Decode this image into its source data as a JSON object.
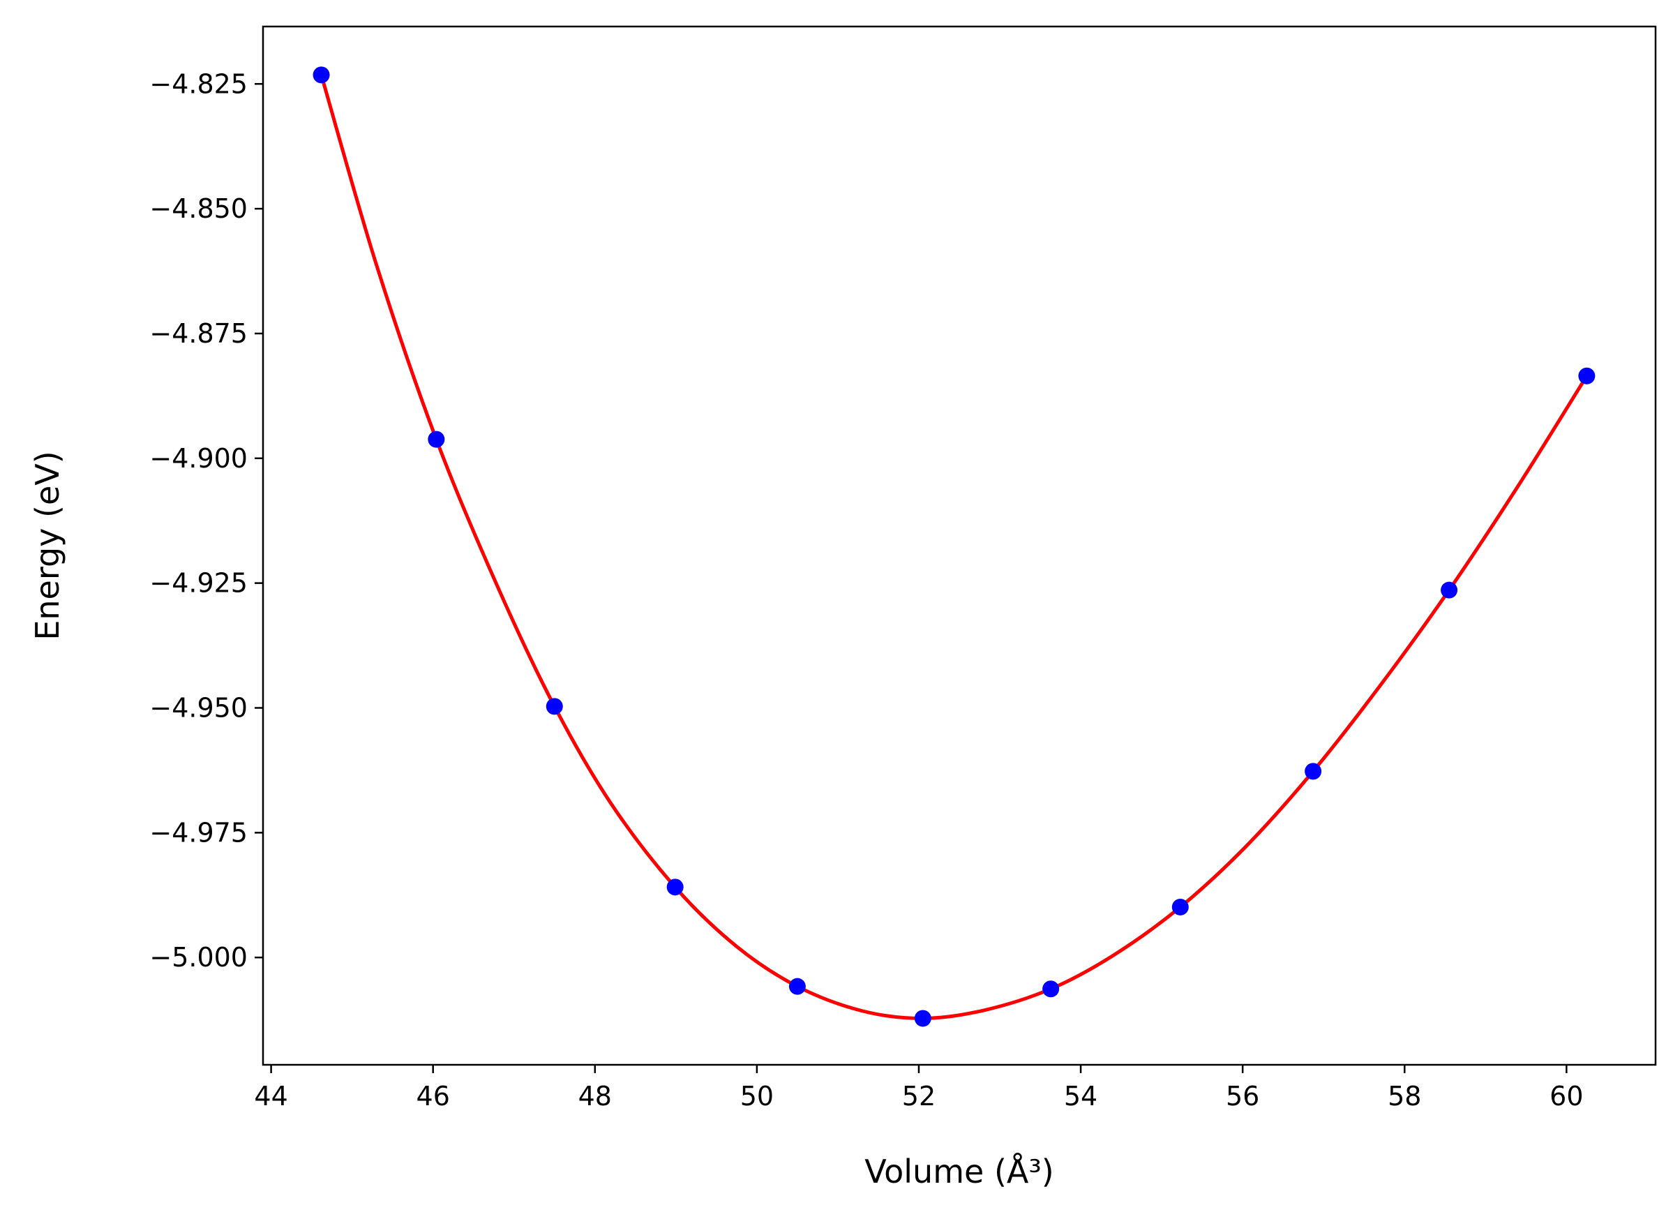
{
  "chart_data": {
    "type": "scatter",
    "xlabel": "Volume (Å³)",
    "ylabel": "Energy (eV)",
    "xlim": [
      43.9,
      61.1
    ],
    "ylim": [
      -5.0215,
      -4.8135
    ],
    "xticks": [
      44,
      46,
      48,
      50,
      52,
      54,
      56,
      58,
      60
    ],
    "xtick_labels": [
      "44",
      "46",
      "48",
      "50",
      "52",
      "54",
      "56",
      "58",
      "60"
    ],
    "yticks": [
      -4.825,
      -4.85,
      -4.875,
      -4.9,
      -4.925,
      -4.95,
      -4.975,
      -5.0
    ],
    "ytick_labels": [
      "−4.825",
      "−4.850",
      "−4.875",
      "−4.900",
      "−4.925",
      "−4.950",
      "−4.975",
      "−5.000"
    ],
    "grid": false,
    "series": [
      {
        "kind": "points",
        "color": "#0000ff",
        "x": [
          44.62,
          46.04,
          47.5,
          48.99,
          50.5,
          52.05,
          53.63,
          55.23,
          56.87,
          58.55,
          60.25
        ],
        "y": [
          -4.8232,
          -4.8962,
          -4.9497,
          -4.9859,
          -5.0058,
          -5.0122,
          -5.0063,
          -4.9899,
          -4.9627,
          -4.9264,
          -4.8835
        ]
      },
      {
        "kind": "fit-curve",
        "color": "#ff0000",
        "x": [
          44.62,
          45.3,
          46.04,
          46.8,
          47.5,
          48.2,
          48.99,
          49.75,
          50.5,
          51.3,
          52.05,
          52.8,
          53.63,
          54.4,
          55.23,
          56.05,
          56.87,
          57.7,
          58.55,
          59.4,
          60.25
        ],
        "y": [
          -4.8232,
          -4.8612,
          -4.8962,
          -4.9258,
          -4.9497,
          -4.9692,
          -4.9859,
          -4.9978,
          -5.0058,
          -5.0107,
          -5.0122,
          -5.0106,
          -5.0063,
          -4.9996,
          -4.9899,
          -4.9776,
          -4.9627,
          -4.9455,
          -4.9264,
          -4.9056,
          -4.8835
        ]
      }
    ]
  }
}
